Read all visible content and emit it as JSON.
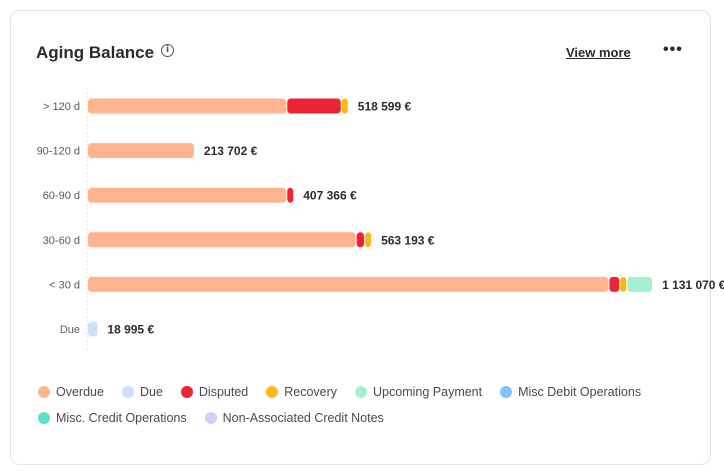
{
  "card": {
    "title": "Aging Balance",
    "view_more_label": "View more",
    "more_icon": "ellipsis-horizontal-icon",
    "info_icon": "info-circle-icon"
  },
  "chart_data": {
    "type": "bar",
    "orientation": "horizontal",
    "stacked": true,
    "categories": [
      "> 120 d",
      "90-120 d",
      "60-90 d",
      "30-60 d",
      "< 30 d",
      "Due"
    ],
    "totals": [
      "518 599 €",
      "213 702 €",
      "407 366 €",
      "563 193 €",
      "1 131 070 €",
      "18 995 €"
    ],
    "xlim": [
      0,
      1220000
    ],
    "grid": false,
    "legend_position": "bottom",
    "series": [
      {
        "name": "Overdue",
        "color": "#FFB48F",
        "values": [
          400000,
          213702,
          400000,
          540000,
          1050000,
          0
        ]
      },
      {
        "name": "Due",
        "color": "#CFE0FA",
        "values": [
          0,
          0,
          0,
          0,
          0,
          18995
        ]
      },
      {
        "name": "Disputed",
        "color": "#EC2434",
        "values": [
          108000,
          0,
          7366,
          15000,
          20000,
          0
        ]
      },
      {
        "name": "Recovery",
        "color": "#FFB70F",
        "values": [
          10599,
          0,
          0,
          8193,
          11070,
          0
        ]
      },
      {
        "name": "Upcoming Payment",
        "color": "#A6F0D2",
        "values": [
          0,
          0,
          0,
          0,
          50000,
          0
        ]
      },
      {
        "name": "Misc Debit Operations",
        "color": "#7EC3F9",
        "values": [
          0,
          0,
          0,
          0,
          0,
          0
        ]
      },
      {
        "name": "Misc. Credit Operations",
        "color": "#5EE2CE",
        "values": [
          0,
          0,
          0,
          0,
          0,
          0
        ]
      },
      {
        "name": "Non-Associated Credit Notes",
        "color": "#D4CDF7",
        "values": [
          0,
          0,
          0,
          0,
          0,
          0
        ]
      }
    ]
  },
  "legend": {
    "rows": [
      [
        {
          "label": "Overdue",
          "color": "#FFB48F"
        },
        {
          "label": "Due",
          "color": "#CFE0FA"
        },
        {
          "label": "Disputed",
          "color": "#EC2434"
        },
        {
          "label": "Recovery",
          "color": "#FFB70F"
        },
        {
          "label": "Upcoming Payment",
          "color": "#A6F0D2"
        },
        {
          "label": "Misc Debit Operations",
          "color": "#7EC3F9"
        }
      ],
      [
        {
          "label": "Misc. Credit Operations",
          "color": "#5EE2CE"
        },
        {
          "label": "Non-Associated Credit Notes",
          "color": "#D4CDF7"
        }
      ]
    ]
  }
}
